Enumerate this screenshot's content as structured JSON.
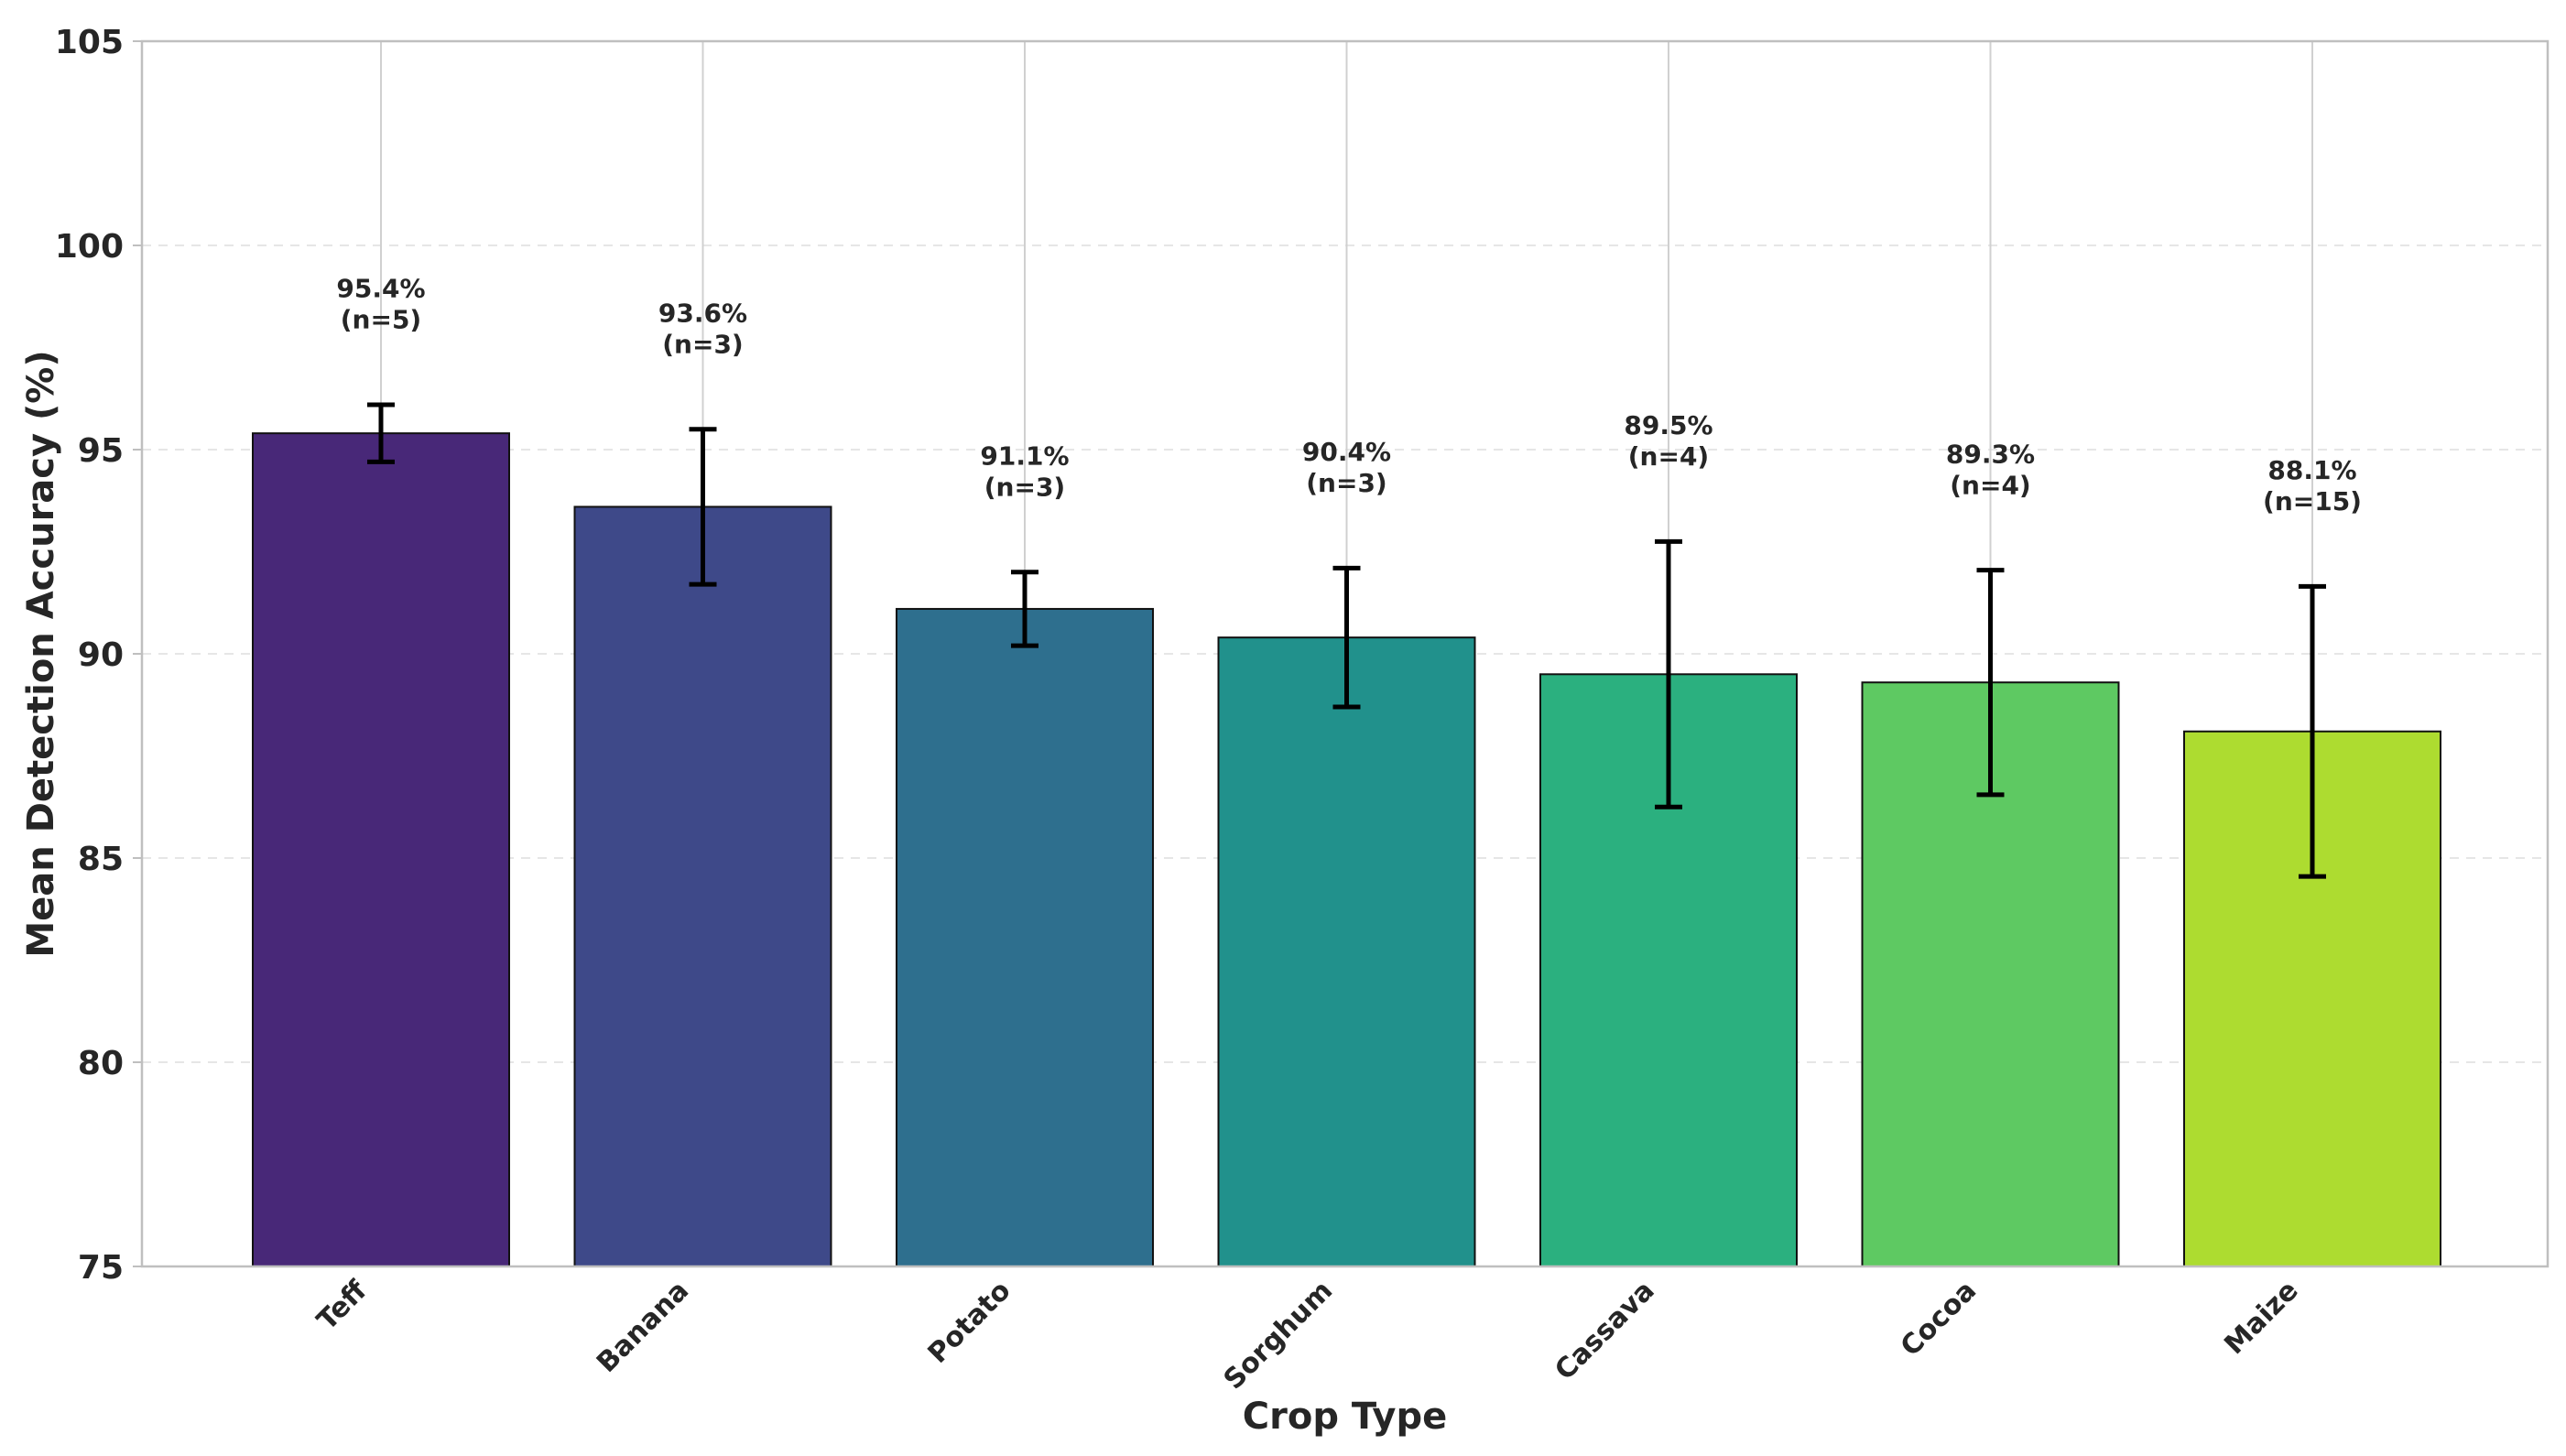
{
  "chart_data": {
    "type": "bar",
    "title": "",
    "xlabel": "Crop Type",
    "ylabel": "Mean Detection Accuracy (%)",
    "ylim": [
      75,
      105
    ],
    "yticks": [
      "75",
      "80",
      "85",
      "90",
      "95",
      "100",
      "105"
    ],
    "categories": [
      "Teff",
      "Banana",
      "Potato",
      "Sorghum",
      "Cassava",
      "Cocoa",
      "Maize"
    ],
    "values": [
      95.4,
      93.6,
      91.1,
      90.4,
      89.5,
      89.3,
      88.1
    ],
    "error": [
      0.7,
      1.9,
      0.9,
      1.7,
      3.25,
      2.75,
      3.55
    ],
    "bar_labels": [
      "95.4%",
      "93.6%",
      "91.1%",
      "90.4%",
      "89.5%",
      "89.3%",
      "88.1%"
    ],
    "counts": [
      "(n=5)",
      "(n=3)",
      "(n=3)",
      "(n=3)",
      "(n=4)",
      "(n=4)",
      "(n=15)"
    ],
    "colors": [
      "#482878",
      "#3e4989",
      "#2e6f8e",
      "#21918c",
      "#2bb07f",
      "#5ec962",
      "#addc30"
    ],
    "grid": true,
    "legend": "none"
  }
}
